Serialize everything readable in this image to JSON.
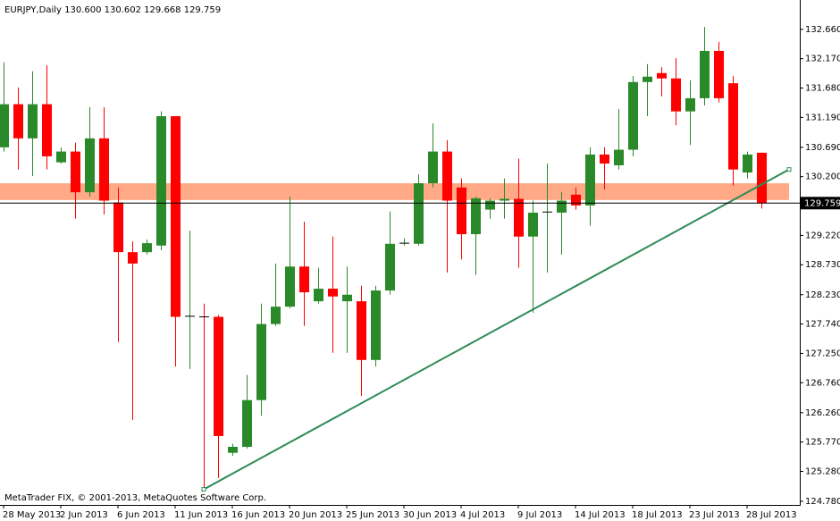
{
  "header": "EURJPY,Daily  130.600 130.602 129.668 129.759",
  "footer": "MetaTrader FIX, © 2001-2013, MetaQuotes Software Corp.",
  "chart_data": {
    "type": "candlestick",
    "categories": [
      "28 May 2013",
      null,
      null,
      null,
      "2 Jun 2013",
      null,
      null,
      null,
      "6 Jun 2013",
      null,
      null,
      null,
      "11 Jun 2013",
      null,
      null,
      null,
      "16 Jun 2013",
      null,
      null,
      null,
      "20 Jun 2013",
      null,
      null,
      null,
      "25 Jun 2013",
      null,
      null,
      null,
      "30 Jun 2013",
      null,
      null,
      null,
      "4 Jul 2013",
      null,
      null,
      null,
      "9 Jul 2013",
      null,
      null,
      null,
      "14 Jul 2013",
      null,
      null,
      null,
      "18 Jul 2013",
      null,
      null,
      null,
      "23 Jul 2013",
      null,
      null,
      null,
      "28 Jul 2013",
      null
    ],
    "open": [
      130.69,
      131.41,
      130.84,
      131.41,
      130.44,
      130.62,
      129.94,
      130.84,
      129.77,
      128.94,
      128.94,
      129.05,
      131.21,
      127.86,
      127.86,
      127.86,
      125.59,
      125.69,
      126.47,
      127.74,
      128.03,
      128.7,
      128.12,
      128.33,
      128.12,
      128.12,
      127.14,
      128.3,
      129.08,
      129.08,
      130.09,
      130.62,
      130.02,
      129.24,
      129.65,
      129.8,
      129.83,
      129.2,
      129.6,
      129.6,
      129.9,
      129.72,
      130.57,
      130.39,
      130.65,
      131.78,
      131.93,
      131.84,
      131.29,
      131.51,
      132.3,
      131.76,
      130.27,
      130.6
    ],
    "high": [
      132.11,
      131.69,
      131.96,
      132.06,
      130.69,
      130.77,
      131.36,
      131.36,
      130.02,
      129.12,
      129.15,
      131.29,
      131.21,
      129.3,
      128.08,
      127.89,
      125.74,
      126.89,
      128.08,
      128.75,
      129.87,
      129.45,
      128.68,
      129.2,
      128.7,
      128.38,
      128.38,
      129.62,
      129.17,
      130.24,
      131.09,
      130.81,
      130.17,
      129.87,
      129.84,
      130.17,
      130.5,
      129.8,
      130.42,
      129.94,
      130.02,
      130.69,
      130.69,
      131.33,
      131.88,
      132.08,
      132.03,
      132.18,
      131.81,
      132.7,
      132.45,
      131.88,
      130.62,
      130.602
    ],
    "low": [
      130.62,
      130.32,
      130.21,
      130.32,
      130.42,
      129.5,
      129.87,
      129.57,
      127.44,
      126.14,
      128.9,
      128.97,
      127.03,
      126.99,
      124.98,
      125.17,
      125.54,
      125.66,
      126.21,
      127.71,
      128.0,
      127.71,
      128.08,
      127.26,
      127.26,
      126.54,
      127.03,
      128.23,
      129.05,
      129.05,
      130.02,
      128.6,
      128.82,
      128.56,
      129.5,
      129.5,
      128.68,
      127.93,
      128.6,
      128.9,
      129.65,
      129.38,
      129.99,
      130.32,
      130.54,
      131.21,
      131.54,
      131.06,
      130.73,
      131.39,
      131.44,
      130.05,
      130.17,
      129.668
    ],
    "close": [
      131.41,
      130.84,
      131.41,
      130.54,
      130.62,
      129.94,
      130.84,
      129.8,
      128.94,
      128.75,
      129.09,
      131.21,
      127.86,
      127.87,
      127.85,
      125.87,
      125.69,
      126.47,
      127.74,
      128.03,
      128.7,
      128.27,
      128.33,
      128.2,
      128.23,
      127.14,
      128.3,
      129.08,
      129.09,
      130.09,
      130.62,
      129.8,
      129.24,
      129.84,
      129.8,
      129.83,
      129.2,
      129.6,
      129.61,
      129.8,
      129.72,
      130.57,
      130.42,
      130.65,
      131.78,
      131.87,
      131.84,
      131.29,
      131.51,
      132.3,
      131.51,
      130.32,
      130.57,
      129.759
    ],
    "up_color": "#2a8a2a",
    "down_color": "#ff0000",
    "current_price": 129.759,
    "zone": [
      129.81,
      130.09
    ],
    "zone_color": "#ffa07a",
    "trendline": [
      124.98,
      130.32
    ],
    "trendline_color": "#2e8b57",
    "ylim": [
      124.72,
      133.15
    ],
    "yticks": [
      {
        "value": 132.66,
        "label": "132.660"
      },
      {
        "value": 132.17,
        "label": "132.170"
      },
      {
        "value": 131.68,
        "label": "131.680"
      },
      {
        "value": 131.19,
        "label": "131.190"
      },
      {
        "value": 130.69,
        "label": "130.690"
      },
      {
        "value": 130.2,
        "label": "130.200"
      },
      {
        "value": 129.22,
        "label": "129.220"
      },
      {
        "value": 128.73,
        "label": "128.730"
      },
      {
        "value": 128.23,
        "label": "128.230"
      },
      {
        "value": 127.74,
        "label": "127.740"
      },
      {
        "value": 127.25,
        "label": "127.250"
      },
      {
        "value": 126.76,
        "label": "126.760"
      },
      {
        "value": 126.26,
        "label": "126.260"
      },
      {
        "value": 125.77,
        "label": "125.770"
      },
      {
        "value": 125.28,
        "label": "125.280"
      },
      {
        "value": 124.78,
        "label": "124.780"
      }
    ]
  }
}
